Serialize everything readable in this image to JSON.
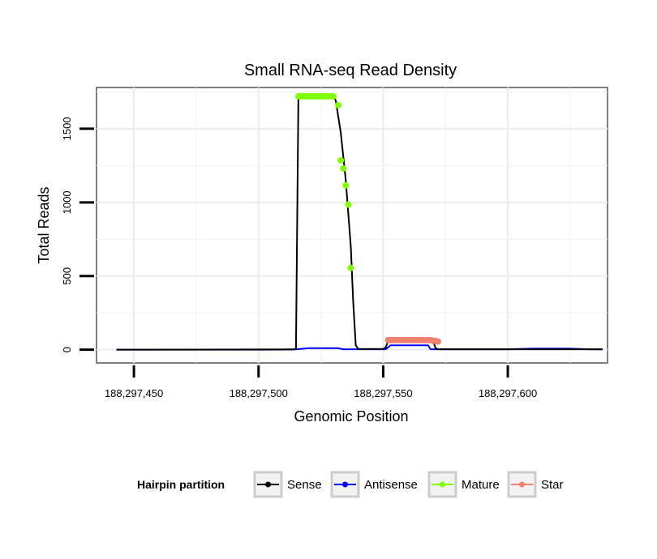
{
  "chart_data": {
    "type": "line",
    "title": "Small RNA-seq Read Density",
    "xlabel": "Genomic Position",
    "ylabel": "Total Reads",
    "xlim": [
      188297435,
      188297640
    ],
    "ylim": [
      -90,
      1780
    ],
    "x_ticks": [
      188297450,
      188297500,
      188297550,
      188297600
    ],
    "x_tick_labels": [
      "188,297,450",
      "188,297,500",
      "188,297,550",
      "188,297,600"
    ],
    "y_ticks": [
      0,
      500,
      1000,
      1500
    ],
    "y_tick_labels": [
      "0",
      "500",
      "1000",
      "1500"
    ],
    "grid": true,
    "legend": {
      "title": "Hairpin partition",
      "position": "bottom",
      "entries": [
        {
          "name": "Sense",
          "color": "#000000"
        },
        {
          "name": "Antisense",
          "color": "#0000ff"
        },
        {
          "name": "Mature",
          "color": "#7fff00"
        },
        {
          "name": "Star",
          "color": "#f08070"
        }
      ]
    },
    "series": [
      {
        "name": "Sense",
        "color": "#000000",
        "style": "line",
        "points": [
          [
            188297443,
            0
          ],
          [
            188297514,
            2
          ],
          [
            188297515,
            5
          ],
          [
            188297516,
            1720
          ],
          [
            188297530,
            1720
          ],
          [
            188297531,
            1690
          ],
          [
            188297533,
            1470
          ],
          [
            188297535,
            1150
          ],
          [
            188297537,
            700
          ],
          [
            188297538,
            320
          ],
          [
            188297539,
            30
          ],
          [
            188297540,
            5
          ],
          [
            188297550,
            5
          ],
          [
            188297551,
            15
          ],
          [
            188297552,
            60
          ],
          [
            188297570,
            60
          ],
          [
            188297571,
            10
          ],
          [
            188297572,
            3
          ],
          [
            188297600,
            3
          ],
          [
            188297638,
            3
          ]
        ]
      },
      {
        "name": "Antisense",
        "color": "#0000ff",
        "style": "line",
        "points": [
          [
            188297443,
            0
          ],
          [
            188297500,
            0
          ],
          [
            188297510,
            1
          ],
          [
            188297515,
            2
          ],
          [
            188297520,
            10
          ],
          [
            188297532,
            10
          ],
          [
            188297534,
            3
          ],
          [
            188297551,
            3
          ],
          [
            188297553,
            30
          ],
          [
            188297568,
            30
          ],
          [
            188297569,
            3
          ],
          [
            188297600,
            3
          ],
          [
            188297610,
            8
          ],
          [
            188297625,
            8
          ],
          [
            188297632,
            3
          ],
          [
            188297638,
            2
          ]
        ]
      },
      {
        "name": "Mature",
        "color": "#7fff00",
        "style": "points",
        "points": [
          [
            188297516,
            1720
          ],
          [
            188297517,
            1720
          ],
          [
            188297518,
            1720
          ],
          [
            188297519,
            1720
          ],
          [
            188297520,
            1720
          ],
          [
            188297521,
            1720
          ],
          [
            188297522,
            1720
          ],
          [
            188297523,
            1720
          ],
          [
            188297524,
            1720
          ],
          [
            188297525,
            1720
          ],
          [
            188297526,
            1720
          ],
          [
            188297527,
            1720
          ],
          [
            188297528,
            1720
          ],
          [
            188297529,
            1720
          ],
          [
            188297530,
            1720
          ],
          [
            188297532,
            1660
          ],
          [
            188297533,
            1285
          ],
          [
            188297534,
            1230
          ],
          [
            188297535,
            1115
          ],
          [
            188297536,
            985
          ],
          [
            188297537,
            555
          ]
        ]
      },
      {
        "name": "Star",
        "color": "#f08070",
        "style": "points",
        "points": [
          [
            188297552,
            65
          ],
          [
            188297553,
            65
          ],
          [
            188297554,
            65
          ],
          [
            188297555,
            65
          ],
          [
            188297556,
            65
          ],
          [
            188297557,
            65
          ],
          [
            188297558,
            65
          ],
          [
            188297559,
            65
          ],
          [
            188297560,
            65
          ],
          [
            188297561,
            65
          ],
          [
            188297562,
            65
          ],
          [
            188297563,
            65
          ],
          [
            188297564,
            65
          ],
          [
            188297565,
            65
          ],
          [
            188297566,
            65
          ],
          [
            188297567,
            65
          ],
          [
            188297568,
            65
          ],
          [
            188297569,
            65
          ],
          [
            188297570,
            60
          ],
          [
            188297571,
            60
          ],
          [
            188297572,
            55
          ]
        ]
      }
    ]
  }
}
